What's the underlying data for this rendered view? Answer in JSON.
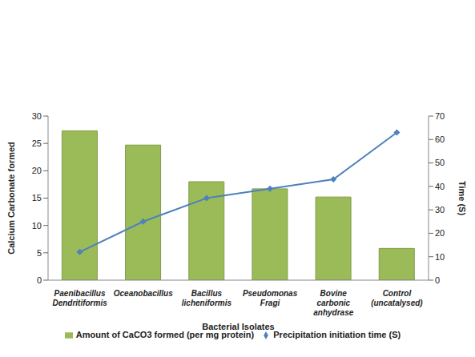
{
  "chart_data": {
    "type": "bar",
    "categories": [
      "Paenibacillus Dendritiformis",
      "Oceanobacillus",
      "Bacillus licheniformis",
      "Pseudomonas Fragi",
      "Bovine carbonic anhydrase",
      "Control (uncatalysed)"
    ],
    "series": [
      {
        "name": "Amount of CaCO3 formed (per mg protein)",
        "type": "bar",
        "color": "#9bbb59",
        "values": [
          27.3,
          24.7,
          18,
          16.7,
          15.2,
          5.8
        ]
      },
      {
        "name": "Precipitation initiation time (S)",
        "type": "line",
        "axis": "y2",
        "color": "#4f81bd",
        "marker": "diamond",
        "values": [
          12,
          25,
          35,
          39,
          43,
          63
        ]
      }
    ],
    "x_label": "Bacterial Isolates",
    "y_label": "Calcium Carbonate formed",
    "y2_label": "Time (S)",
    "ylim": [
      0,
      30
    ],
    "yticks": [
      0,
      5,
      10,
      15,
      20,
      25,
      30
    ],
    "y2lim": [
      0,
      70
    ],
    "y2ticks": [
      0,
      10,
      20,
      30,
      40,
      50,
      60,
      70
    ],
    "grid": false,
    "legend": "bottom"
  }
}
